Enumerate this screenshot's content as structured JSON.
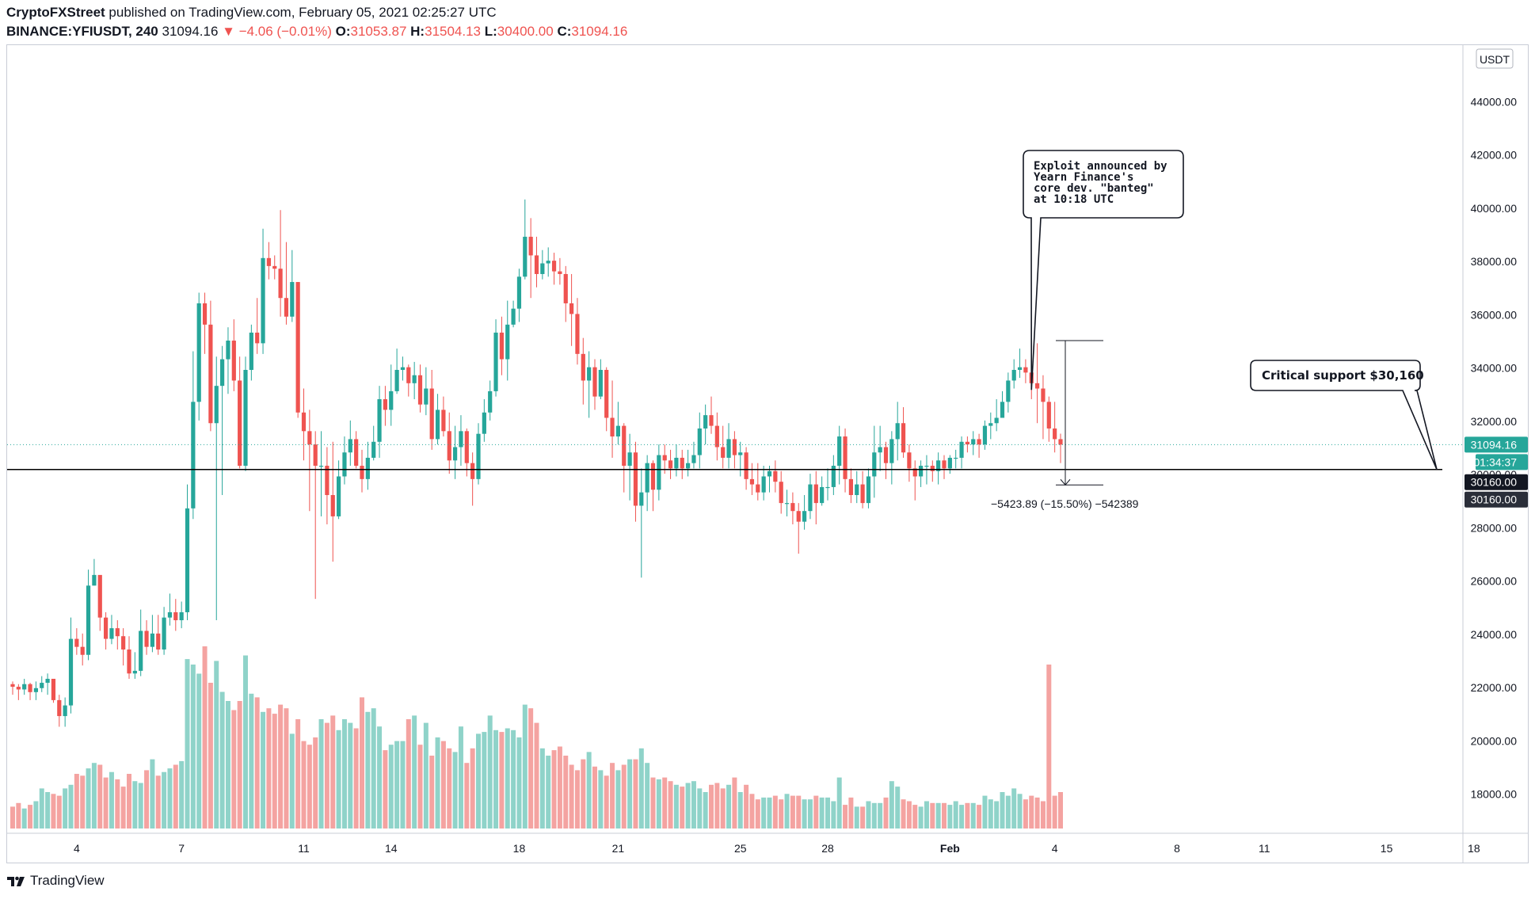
{
  "header": {
    "publisher": "CryptoFXStreet",
    "published_text": "published on TradingView.com, February 05, 2021 02:25:27 UTC",
    "symbol": "BINANCE:YFIUSDT, 240",
    "last": "31094.16",
    "change": "▼ −4.06 (−0.01%)",
    "o_label": "O:",
    "o_value": "31053.87",
    "h_label": "H:",
    "h_value": "31504.13",
    "l_label": "L:",
    "l_value": "30400.00",
    "c_label": "C:",
    "c_value": "31094.16"
  },
  "footer": {
    "brand": "TradingView"
  },
  "colors": {
    "up": "#26a69a",
    "down": "#ef5350",
    "vol_up": "#8fd3c9",
    "vol_down": "#f4a3a1",
    "support": "#000000"
  },
  "chart_data": {
    "type": "candlestick",
    "currency": "USDT",
    "ylim": [
      16500,
      45500
    ],
    "y_ticks": [
      18000,
      20000,
      22000,
      24000,
      26000,
      28000,
      30000,
      32000,
      34000,
      36000,
      38000,
      40000,
      42000,
      44000
    ],
    "y_tick_labels": [
      "18000.00",
      "20000.00",
      "22000.00",
      "24000.00",
      "26000.00",
      "28000.00",
      "30000.00",
      "32000.00",
      "34000.00",
      "36000.00",
      "38000.00",
      "40000.00",
      "42000.00",
      "44000.00"
    ],
    "x_ticks": [
      {
        "label": "4",
        "bar": 11
      },
      {
        "label": "7",
        "bar": 29
      },
      {
        "label": "11",
        "bar": 50
      },
      {
        "label": "14",
        "bar": 65
      },
      {
        "label": "18",
        "bar": 87
      },
      {
        "label": "21",
        "bar": 104
      },
      {
        "label": "25",
        "bar": 125
      },
      {
        "label": "28",
        "bar": 140
      },
      {
        "label": "Feb",
        "bar": 161
      },
      {
        "label": "4",
        "bar": 179
      },
      {
        "label": "8",
        "bar": 200
      },
      {
        "label": "11",
        "bar": 215
      },
      {
        "label": "15",
        "bar": 236
      },
      {
        "label": "18",
        "bar": 251
      }
    ],
    "anchor": [
      0,
      30160
    ],
    "closes": [
      22000,
      21900,
      22100,
      21800,
      21950,
      22150,
      22300,
      21500,
      20900,
      21300,
      23800,
      23500,
      23200,
      25800,
      26200,
      24600,
      23800,
      24200,
      23900,
      23400,
      22500,
      22600,
      24100,
      23500,
      24000,
      23400,
      24600,
      24800,
      24500,
      24800,
      28700,
      32700,
      36400,
      35600,
      31900,
      33300,
      34300,
      35000,
      33500,
      30300,
      33900,
      35300,
      34900,
      38100,
      37800,
      37700,
      36600,
      35900,
      37200,
      32300,
      31600,
      31100,
      30300,
      30300,
      29200,
      28400,
      29900,
      30800,
      31300,
      30300,
      29800,
      30600,
      31200,
      32800,
      32400,
      33100,
      33900,
      34000,
      33400,
      33700,
      32600,
      33200,
      31300,
      32400,
      31600,
      30500,
      31000,
      31600,
      30400,
      29800,
      31500,
      32300,
      33100,
      35300,
      34300,
      35600,
      36200,
      37400,
      38900,
      38200,
      37500,
      37900,
      38000,
      37600,
      37500,
      36400,
      36000,
      34500,
      33500,
      34000,
      32900,
      33900,
      32100,
      31400,
      31800,
      30300,
      30800,
      28800,
      29300,
      30400,
      29400,
      30700,
      30500,
      30200,
      30600,
      30200,
      30400,
      30700,
      31700,
      32200,
      31800,
      31000,
      30600,
      31300,
      30700,
      30800,
      29800,
      29600,
      29300,
      29900,
      30100,
      29700,
      28900,
      28900,
      28600,
      28200,
      28600,
      29600,
      28900,
      29500,
      29500,
      30300,
      31400,
      29800,
      29200,
      29600,
      28900,
      29900,
      30800,
      31000,
      30400,
      31300,
      31900,
      30800,
      30200,
      29900,
      30300,
      30300,
      30100,
      30500,
      30200,
      30600,
      30600,
      31200,
      31100,
      31300,
      31100,
      31800,
      31900,
      32100,
      32700,
      33500,
      33900,
      34000,
      33800,
      33400,
      33200,
      32700,
      31700,
      31300,
      31094.16
    ],
    "highs": [
      22200,
      22100,
      22300,
      22150,
      22200,
      22400,
      22500,
      22300,
      21700,
      21600,
      24600,
      24200,
      24000,
      26400,
      26800,
      25900,
      24800,
      24700,
      24500,
      24200,
      23900,
      23300,
      24900,
      24500,
      24700,
      24700,
      25000,
      25500,
      25300,
      25200,
      29600,
      34600,
      36800,
      36800,
      36500,
      34400,
      34800,
      35500,
      35800,
      34400,
      34400,
      35600,
      36600,
      39200,
      38700,
      38200,
      39900,
      38700,
      38400,
      37200,
      33200,
      32400,
      31600,
      31600,
      31000,
      31200,
      30500,
      31400,
      32000,
      31600,
      30900,
      31200,
      31800,
      33300,
      33300,
      34100,
      34700,
      34400,
      34100,
      34200,
      34100,
      34000,
      33900,
      33000,
      32900,
      32300,
      31800,
      32200,
      31700,
      30800,
      31900,
      32800,
      33500,
      35800,
      35900,
      36500,
      36500,
      37700,
      40300,
      39600,
      38900,
      38400,
      38500,
      38300,
      38100,
      37800,
      37500,
      36600,
      35100,
      34600,
      34300,
      34300,
      34000,
      33500,
      32700,
      31900,
      31500,
      31200,
      30200,
      30700,
      30500,
      31100,
      31100,
      30900,
      31100,
      30900,
      30900,
      31200,
      32300,
      32600,
      32900,
      32300,
      31800,
      31900,
      31600,
      31200,
      31000,
      30400,
      30400,
      30300,
      30300,
      30500,
      30100,
      29400,
      29300,
      28900,
      29200,
      30000,
      30100,
      29900,
      30200,
      30700,
      31800,
      31700,
      30200,
      30100,
      30100,
      30200,
      31800,
      31800,
      31200,
      31600,
      32700,
      32500,
      31100,
      30500,
      30500,
      30700,
      30500,
      30800,
      30700,
      30700,
      30900,
      31400,
      31400,
      31600,
      31500,
      32000,
      32300,
      32800,
      33100,
      33800,
      34300,
      34700,
      34300,
      34000,
      34900,
      33700,
      32900,
      32700,
      31504.13
    ],
    "lows": [
      21700,
      21500,
      21700,
      21500,
      21500,
      21800,
      21700,
      21400,
      20500,
      20500,
      21000,
      23200,
      22800,
      23000,
      25800,
      24100,
      23400,
      23600,
      23400,
      22800,
      22300,
      22300,
      22400,
      23200,
      23300,
      23200,
      23200,
      24300,
      24100,
      24200,
      24500,
      28300,
      32000,
      34500,
      31600,
      24500,
      29200,
      33000,
      33100,
      30200,
      30100,
      33500,
      34500,
      34500,
      37300,
      37300,
      35900,
      35600,
      35700,
      32100,
      30500,
      28600,
      25300,
      28400,
      28100,
      26700,
      28300,
      29600,
      30300,
      30200,
      29300,
      29400,
      30500,
      30600,
      31800,
      31800,
      33000,
      33500,
      32900,
      32800,
      32300,
      32200,
      30900,
      31100,
      31400,
      30000,
      29800,
      30300,
      29900,
      28800,
      29600,
      31200,
      32000,
      32900,
      33700,
      33500,
      35500,
      35700,
      37300,
      36600,
      37000,
      37300,
      37400,
      37100,
      37100,
      35700,
      34800,
      34100,
      32600,
      32100,
      32400,
      32800,
      31600,
      30600,
      31100,
      29300,
      29000,
      28200,
      26100,
      28600,
      28600,
      29000,
      30000,
      29800,
      29900,
      29800,
      29900,
      30200,
      30200,
      31100,
      31500,
      30500,
      30200,
      30200,
      30200,
      29900,
      29400,
      29200,
      29000,
      29000,
      29300,
      29300,
      28500,
      28400,
      28100,
      27000,
      27900,
      28300,
      28100,
      28800,
      29000,
      29200,
      29600,
      29300,
      28900,
      28900,
      28700,
      28700,
      29100,
      30100,
      29800,
      29600,
      30500,
      30600,
      29700,
      29000,
      29500,
      29600,
      29700,
      29600,
      29800,
      30000,
      30200,
      30200,
      30800,
      30700,
      30600,
      30900,
      31300,
      31600,
      32300,
      32300,
      33200,
      33600,
      33400,
      32800,
      31900,
      31300,
      31200,
      30800,
      30400
    ]
  },
  "volume": {
    "values": [
      12,
      14,
      11,
      13,
      15,
      22,
      20,
      19,
      18,
      22,
      24,
      30,
      29,
      33,
      36,
      35,
      28,
      31,
      27,
      23,
      30,
      26,
      25,
      32,
      38,
      29,
      31,
      33,
      35,
      37,
      93,
      90,
      85,
      100,
      80,
      92,
      75,
      70,
      65,
      70,
      95,
      74,
      72,
      64,
      66,
      63,
      68,
      66,
      52,
      60,
      48,
      46,
      50,
      60,
      58,
      62,
      54,
      60,
      58,
      55,
      72,
      64,
      66,
      56,
      43,
      46,
      48,
      48,
      60,
      62,
      46,
      58,
      40,
      50,
      48,
      44,
      42,
      56,
      36,
      44,
      52,
      53,
      62,
      54,
      53,
      55,
      54,
      50,
      68,
      66,
      58,
      44,
      40,
      43,
      45,
      40,
      35,
      32,
      38,
      42,
      34,
      32,
      29,
      36,
      32,
      35,
      38,
      38,
      44,
      36,
      28,
      27,
      28,
      26,
      24,
      23,
      25,
      26,
      22,
      20,
      24,
      25,
      22,
      24,
      28,
      20,
      24,
      19,
      16,
      17,
      17,
      18,
      16,
      19,
      18,
      18,
      16,
      16,
      18,
      17,
      17,
      15,
      28,
      13,
      17,
      12,
      12,
      15,
      14,
      14,
      17,
      26,
      23,
      16,
      15,
      13,
      12,
      15,
      14,
      14,
      14,
      13,
      15,
      13,
      14,
      14,
      13,
      18,
      16,
      15,
      20,
      18,
      22,
      19,
      16,
      18,
      17,
      15,
      90,
      18,
      20
    ],
    "max_display": 100
  },
  "annotations": {
    "exploit_lines": [
      "Exploit announced by",
      "Yearn Finance's",
      "core dev. \"banteg\"",
      "at 10:18 UTC"
    ],
    "critical_support": "Critical support $30,160",
    "support_level": 30160,
    "measure_text": "−5423.89 (−15.50%) −542389",
    "measure_top": 35000,
    "measure_bottom": 29580
  },
  "price_labels": {
    "current": "31094.16",
    "countdown": "01:34:37",
    "support_a": "30160.00",
    "support_b": "30160.00",
    "current_price": 31094.16
  }
}
